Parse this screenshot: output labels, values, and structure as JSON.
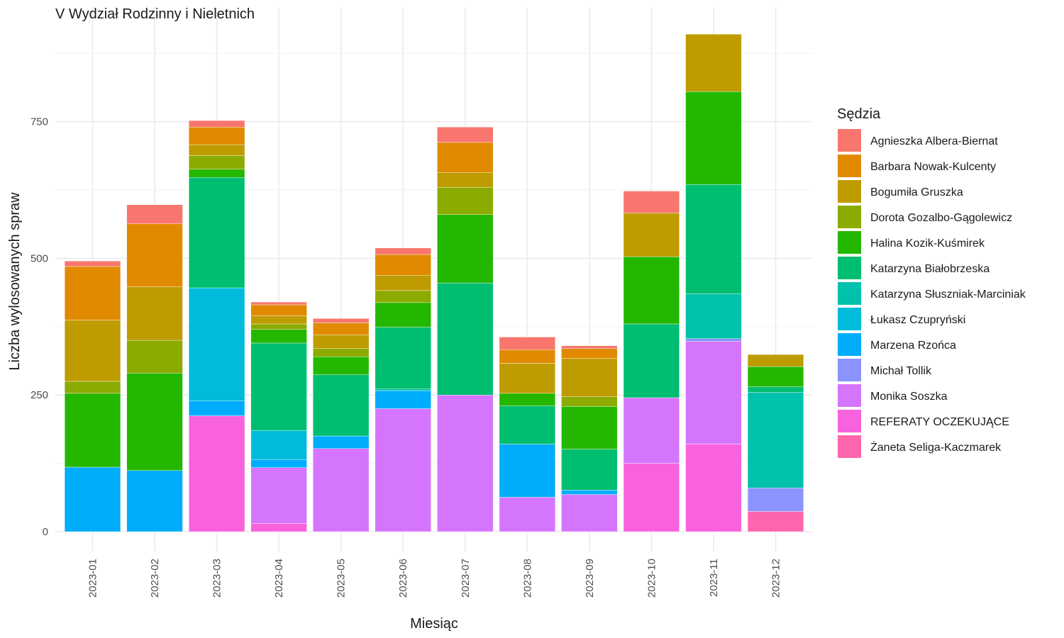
{
  "chart_data": {
    "type": "bar",
    "stacked": true,
    "title": "V Wydział Rodzinny i Nieletnich",
    "xlabel": "Miesiąc",
    "ylabel": "Liczba wylosowanych spraw",
    "ylim": [
      0,
      920
    ],
    "yticks": [
      0,
      250,
      500,
      750
    ],
    "grid": true,
    "legend_position": "right",
    "legend_title": "Sędzia",
    "categories": [
      "2023-01",
      "2023-02",
      "2023-03",
      "2023-04",
      "2023-05",
      "2023-06",
      "2023-07",
      "2023-08",
      "2023-09",
      "2023-10",
      "2023-11",
      "2023-12"
    ],
    "series": [
      {
        "name": "Agnieszka Albera-Biernat",
        "color": "#F8766D",
        "values": [
          10,
          35,
          12,
          5,
          8,
          12,
          28,
          23,
          5,
          40,
          0,
          0
        ]
      },
      {
        "name": "Barbara Nowak-Kulcenty",
        "color": "#E18A00",
        "values": [
          98,
          115,
          32,
          20,
          22,
          38,
          55,
          25,
          18,
          0,
          0,
          0
        ]
      },
      {
        "name": "Bogumiła Gruszka",
        "color": "#BE9C00",
        "values": [
          112,
          98,
          20,
          15,
          25,
          28,
          27,
          55,
          70,
          80,
          105,
          22
        ]
      },
      {
        "name": "Dorota Gozalbo-Gągolewicz",
        "color": "#8CAB00",
        "values": [
          22,
          60,
          25,
          10,
          15,
          22,
          50,
          0,
          18,
          0,
          0,
          0
        ]
      },
      {
        "name": "Halina Kozik-Kuśmirek",
        "color": "#24B700",
        "values": [
          135,
          178,
          15,
          25,
          33,
          45,
          125,
          23,
          78,
          123,
          170,
          37
        ]
      },
      {
        "name": "Katarzyna Białobrzeska",
        "color": "#00BE70",
        "values": [
          0,
          0,
          202,
          160,
          112,
          113,
          205,
          70,
          75,
          135,
          200,
          10
        ]
      },
      {
        "name": "Katarzyna Słuszniak-Marciniak",
        "color": "#00C1AB",
        "values": [
          0,
          0,
          0,
          0,
          0,
          3,
          0,
          0,
          0,
          0,
          82,
          175
        ]
      },
      {
        "name": "Łukasz Czupryński",
        "color": "#00BBDA",
        "values": [
          0,
          0,
          207,
          53,
          0,
          0,
          0,
          0,
          0,
          0,
          0,
          0
        ]
      },
      {
        "name": "Marzena Rzońca",
        "color": "#00ACFC",
        "values": [
          118,
          112,
          27,
          15,
          23,
          33,
          0,
          97,
          8,
          0,
          0,
          0
        ]
      },
      {
        "name": "Michał Tollik",
        "color": "#8B93FF",
        "values": [
          0,
          0,
          0,
          0,
          0,
          0,
          0,
          0,
          0,
          0,
          5,
          43
        ]
      },
      {
        "name": "Monika Soszka",
        "color": "#D575FE",
        "values": [
          0,
          0,
          0,
          102,
          152,
          225,
          250,
          63,
          68,
          120,
          188,
          0
        ]
      },
      {
        "name": "REFERATY OCZEKUJĄCE",
        "color": "#F962DD",
        "values": [
          0,
          0,
          212,
          15,
          0,
          0,
          0,
          0,
          0,
          125,
          160,
          0
        ]
      },
      {
        "name": "Żaneta Seliga-Kaczmarek",
        "color": "#FF65AC",
        "values": [
          0,
          0,
          0,
          0,
          0,
          0,
          0,
          0,
          0,
          0,
          0,
          37
        ]
      }
    ]
  }
}
